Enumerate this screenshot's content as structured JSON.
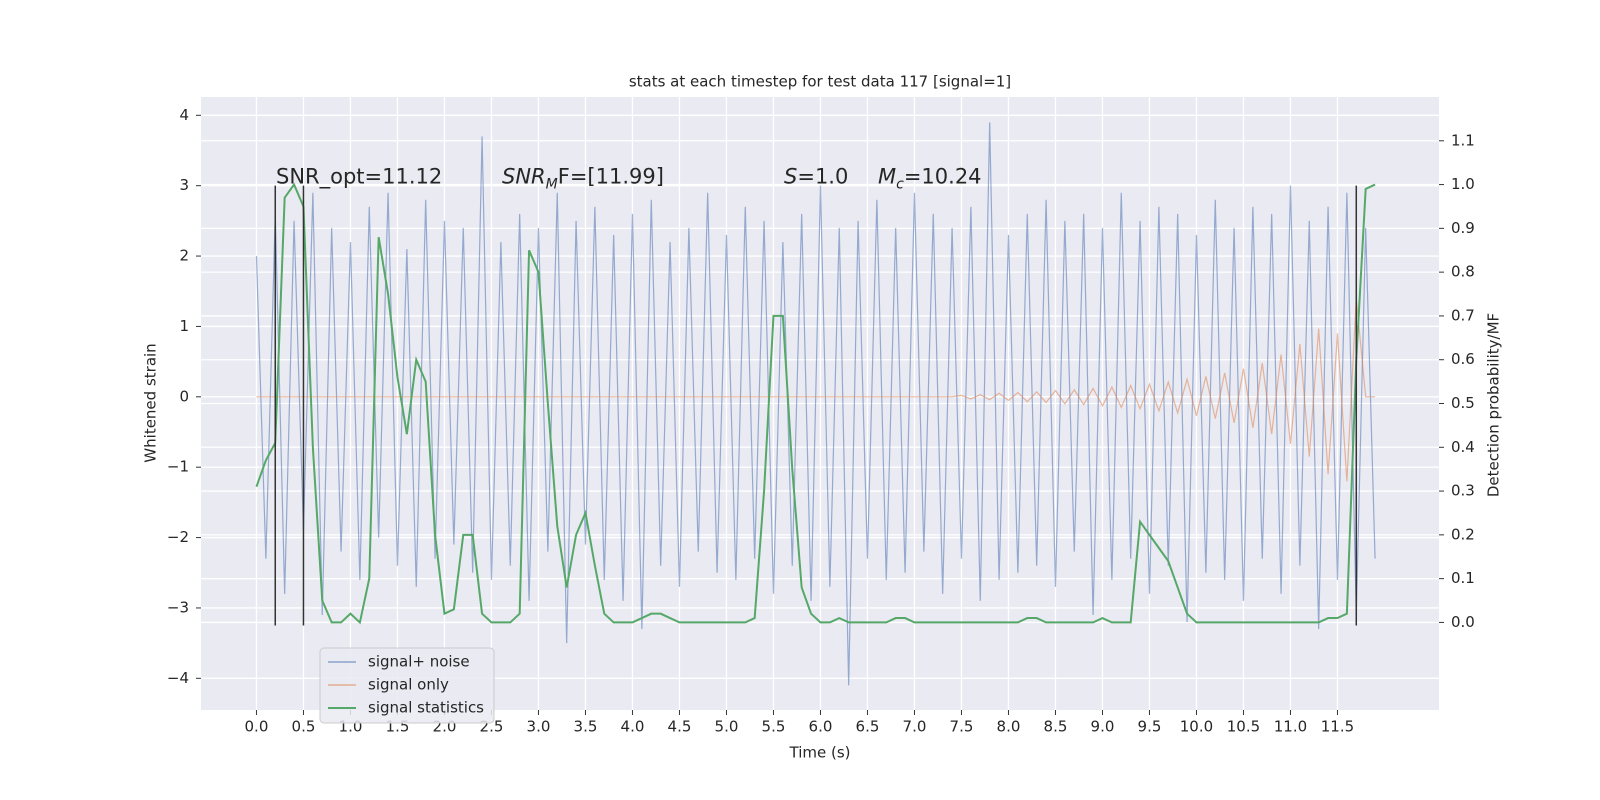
{
  "chart_data": {
    "type": "line",
    "title": "stats at each timestep for test data 117 [signal=1]",
    "xlabel": "Time (s)",
    "ylabel": "Whitened strain",
    "y2label": "Detection probability/MF",
    "x": [
      0.0,
      0.1,
      0.2,
      0.3,
      0.4,
      0.5,
      0.6,
      0.7,
      0.8,
      0.9,
      1.0,
      1.1,
      1.2,
      1.3,
      1.4,
      1.5,
      1.6,
      1.7,
      1.8,
      1.9,
      2.0,
      2.1,
      2.2,
      2.3,
      2.4,
      2.5,
      2.6,
      2.7,
      2.8,
      2.9,
      3.0,
      3.1,
      3.2,
      3.3,
      3.4,
      3.5,
      3.6,
      3.7,
      3.8,
      3.9,
      4.0,
      4.1,
      4.2,
      4.3,
      4.4,
      4.5,
      4.6,
      4.7,
      4.8,
      4.9,
      5.0,
      5.1,
      5.2,
      5.3,
      5.4,
      5.5,
      5.6,
      5.7,
      5.8,
      5.9,
      6.0,
      6.1,
      6.2,
      6.3,
      6.4,
      6.5,
      6.6,
      6.7,
      6.8,
      6.9,
      7.0,
      7.1,
      7.2,
      7.3,
      7.4,
      7.5,
      7.6,
      7.7,
      7.8,
      7.9,
      8.0,
      8.1,
      8.2,
      8.3,
      8.4,
      8.5,
      8.6,
      8.7,
      8.8,
      8.9,
      9.0,
      9.1,
      9.2,
      9.3,
      9.4,
      9.5,
      9.6,
      9.7,
      9.8,
      9.9,
      10.0,
      10.1,
      10.2,
      10.3,
      10.4,
      10.5,
      10.6,
      10.7,
      10.8,
      10.9,
      11.0,
      11.1,
      11.2,
      11.3,
      11.4,
      11.5,
      11.6,
      11.7,
      11.8,
      11.9
    ],
    "series": [
      {
        "name": "signal+ noise",
        "color": "#4c72b0",
        "values": [
          2.0,
          -2.3,
          2.6,
          -2.8,
          2.5,
          -1.9,
          2.9,
          -3.1,
          2.4,
          -2.2,
          2.2,
          -2.6,
          2.7,
          -2.0,
          2.9,
          -2.4,
          2.1,
          -2.7,
          2.8,
          -2.3,
          2.5,
          -2.1,
          2.4,
          -2.5,
          3.7,
          -2.6,
          2.2,
          -2.4,
          2.6,
          -2.9,
          2.4,
          -2.2,
          2.9,
          -3.5,
          2.5,
          -2.1,
          2.7,
          -2.6,
          2.3,
          -2.9,
          2.6,
          -3.3,
          2.8,
          -2.4,
          2.2,
          -2.7,
          2.4,
          -2.2,
          2.9,
          -2.5,
          2.3,
          -2.6,
          2.7,
          -2.3,
          2.5,
          -2.8,
          2.2,
          -2.4,
          2.6,
          -2.9,
          3.0,
          -2.7,
          2.4,
          -4.1,
          2.5,
          -2.3,
          2.8,
          -2.6,
          2.4,
          -2.5,
          2.9,
          -2.2,
          2.6,
          -2.8,
          2.4,
          -2.3,
          2.7,
          -2.9,
          3.9,
          -2.6,
          2.3,
          -2.5,
          2.6,
          -2.4,
          2.8,
          -2.7,
          2.5,
          -2.2,
          2.6,
          -3.1,
          2.4,
          -2.6,
          2.9,
          -2.3,
          2.5,
          -2.8,
          2.7,
          -2.4,
          2.6,
          -3.2,
          2.3,
          -2.5,
          2.8,
          -2.6,
          2.4,
          -2.9,
          2.7,
          -2.3,
          2.6,
          -2.8,
          3.0,
          -2.4,
          2.5,
          -3.3,
          2.7,
          -2.6,
          2.9,
          -3.1,
          2.4,
          -2.3
        ]
      },
      {
        "name": "signal only",
        "color": "#dd8452",
        "values": [
          0.0,
          0.0,
          0.0,
          0.0,
          0.0,
          0.0,
          0.0,
          0.0,
          0.0,
          0.0,
          0.0,
          0.0,
          0.0,
          0.0,
          0.0,
          0.0,
          0.0,
          0.0,
          0.0,
          0.0,
          0.0,
          0.0,
          0.0,
          0.0,
          0.0,
          0.0,
          0.0,
          0.0,
          0.0,
          0.0,
          0.0,
          0.0,
          0.0,
          0.0,
          0.0,
          0.0,
          0.0,
          0.0,
          0.0,
          0.0,
          0.0,
          0.0,
          0.0,
          0.0,
          0.0,
          0.0,
          0.0,
          0.0,
          0.0,
          0.0,
          0.0,
          0.0,
          0.0,
          0.0,
          0.0,
          0.0,
          0.0,
          0.0,
          0.0,
          0.0,
          0.0,
          0.0,
          0.0,
          0.0,
          0.0,
          0.0,
          0.0,
          0.0,
          0.0,
          0.0,
          0.0,
          0.0,
          0.0,
          0.0,
          0.0,
          0.02,
          -0.03,
          0.03,
          -0.04,
          0.05,
          -0.05,
          0.06,
          -0.07,
          0.07,
          -0.08,
          0.09,
          -0.1,
          0.1,
          -0.11,
          0.12,
          -0.13,
          0.14,
          -0.15,
          0.16,
          -0.17,
          0.18,
          -0.2,
          0.21,
          -0.23,
          0.25,
          -0.27,
          0.29,
          -0.31,
          0.34,
          -0.37,
          0.4,
          -0.44,
          0.48,
          -0.53,
          0.6,
          -0.67,
          0.75,
          -0.85,
          0.97,
          -1.1,
          0.9,
          -1.2,
          1.4,
          0.0,
          0.0
        ]
      },
      {
        "name": "signal statistics",
        "color": "#55a868",
        "axis": "y2",
        "values": [
          0.31,
          0.37,
          0.41,
          0.97,
          1.0,
          0.95,
          0.4,
          0.05,
          0.0,
          0.0,
          0.02,
          0.0,
          0.1,
          0.88,
          0.75,
          0.56,
          0.43,
          0.6,
          0.55,
          0.2,
          0.02,
          0.03,
          0.2,
          0.2,
          0.02,
          0.0,
          0.0,
          0.0,
          0.02,
          0.85,
          0.8,
          0.5,
          0.22,
          0.08,
          0.2,
          0.25,
          0.13,
          0.02,
          0.0,
          0.0,
          0.0,
          0.01,
          0.02,
          0.02,
          0.01,
          0.0,
          0.0,
          0.0,
          0.0,
          0.0,
          0.0,
          0.0,
          0.0,
          0.01,
          0.3,
          0.7,
          0.7,
          0.35,
          0.08,
          0.02,
          0.0,
          0.0,
          0.01,
          0.0,
          0.0,
          0.0,
          0.0,
          0.0,
          0.01,
          0.01,
          0.0,
          0.0,
          0.0,
          0.0,
          0.0,
          0.0,
          0.0,
          0.0,
          0.0,
          0.0,
          0.0,
          0.0,
          0.01,
          0.01,
          0.0,
          0.0,
          0.0,
          0.0,
          0.0,
          0.0,
          0.01,
          0.0,
          0.0,
          0.0,
          0.23,
          0.2,
          0.17,
          0.14,
          0.08,
          0.02,
          0.0,
          0.0,
          0.0,
          0.0,
          0.0,
          0.0,
          0.0,
          0.0,
          0.0,
          0.0,
          0.0,
          0.0,
          0.0,
          0.0,
          0.01,
          0.01,
          0.02,
          0.6,
          0.99,
          1.0
        ]
      }
    ],
    "vlines": [
      0.2,
      0.5,
      11.7
    ],
    "vline_ylim": [
      -3.25,
      3.0
    ],
    "vline_color": "#333333",
    "annotations": [
      {
        "parts": [
          "SNR_opt=11.12"
        ]
      },
      {
        "parts": [
          "SNR",
          "M",
          "F=[11.99]"
        ]
      },
      {
        "parts": [
          "S",
          "=1.0"
        ]
      },
      {
        "parts": [
          "M",
          "c",
          "=10.24"
        ]
      }
    ],
    "xlim": [
      -0.59,
      12.58
    ],
    "ylim": [
      -4.45,
      4.26
    ],
    "y2lim": [
      -0.2,
      1.2
    ],
    "xticks": [
      {
        "value": 0,
        "label": "0.0"
      },
      0.5,
      {
        "value": 1,
        "label": "1.0"
      },
      1.5,
      {
        "value": 2,
        "label": "2.0"
      },
      2.5,
      {
        "value": 3,
        "label": "3.0"
      },
      3.5,
      {
        "value": 4,
        "label": "4.0"
      },
      4.5,
      {
        "value": 5,
        "label": "5.0"
      },
      5.5,
      {
        "value": 6,
        "label": "6.0"
      },
      6.5,
      {
        "value": 7,
        "label": "7.0"
      },
      7.5,
      {
        "value": 8,
        "label": "8.0"
      },
      8.5,
      {
        "value": 9,
        "label": "9.0"
      },
      9.5,
      {
        "value": 10,
        "label": "10.0"
      },
      10.5,
      {
        "value": 11,
        "label": "11.0"
      },
      11.5
    ],
    "yticks": [
      {
        "value": -4,
        "label": "−4"
      },
      {
        "value": -3,
        "label": "−3"
      },
      {
        "value": -2,
        "label": "−2"
      },
      {
        "value": -1,
        "label": "−1"
      },
      0,
      1,
      2,
      3,
      4
    ],
    "y2ticks": [
      {
        "value": 0,
        "label": "0.0"
      },
      0.1,
      0.2,
      0.3,
      0.4,
      0.5,
      0.6,
      0.7,
      0.8,
      0.9,
      {
        "value": 1,
        "label": "1.0"
      },
      1.1
    ],
    "grid": true,
    "legend": "lower left"
  }
}
